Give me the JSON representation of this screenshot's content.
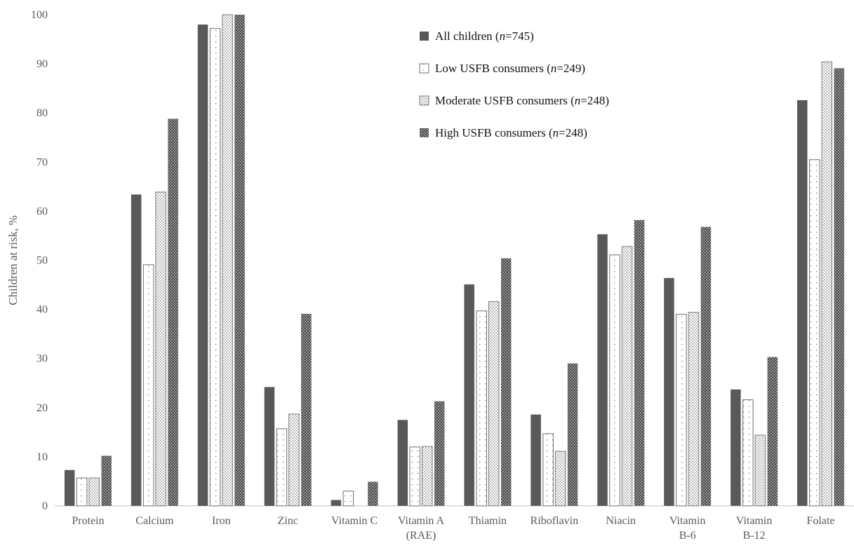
{
  "chart_data": {
    "type": "bar",
    "title": "",
    "xlabel": "",
    "ylabel": "Children at risk, %",
    "ylim": [
      0,
      100
    ],
    "yticks": [
      0,
      10,
      20,
      30,
      40,
      50,
      60,
      70,
      80,
      90,
      100
    ],
    "grid": false,
    "legend_position": "top-right",
    "categories": [
      [
        "Protein"
      ],
      [
        "Calcium"
      ],
      [
        "Iron"
      ],
      [
        "Zinc"
      ],
      [
        "Vitamin C"
      ],
      [
        "Vitamin A",
        "(RAE)"
      ],
      [
        "Thiamin"
      ],
      [
        "Riboflavin"
      ],
      [
        "Niacin"
      ],
      [
        "Vitamin",
        "B-6"
      ],
      [
        "Vitamin",
        "B-12"
      ],
      [
        "Folate"
      ]
    ],
    "series": [
      {
        "name": "All children (n=745)",
        "legend_parts": [
          "All children (",
          "n",
          "=745)"
        ],
        "pattern": "solid",
        "values": [
          7.3,
          63.4,
          98.0,
          24.2,
          1.2,
          17.5,
          45.1,
          18.6,
          55.3,
          46.4,
          23.7,
          82.6
        ]
      },
      {
        "name": "Low USFB consumers (n=249)",
        "legend_parts": [
          "Low USFB consumers (",
          "n",
          "=249)"
        ],
        "pattern": "sparse-dots",
        "values": [
          5.7,
          49.1,
          97.2,
          15.7,
          3.0,
          12.0,
          39.7,
          14.7,
          51.1,
          39.0,
          21.6,
          70.5
        ]
      },
      {
        "name": "Moderate USFB consumers (n=248)",
        "legend_parts": [
          "Moderate USFB consumers (",
          "n",
          "=248)"
        ],
        "pattern": "dense-dots",
        "values": [
          5.7,
          63.9,
          100.0,
          18.7,
          0,
          12.1,
          41.6,
          11.1,
          52.8,
          39.4,
          14.4,
          90.4
        ]
      },
      {
        "name": "High USFB consumers (n=248)",
        "legend_parts": [
          "High USFB consumers (",
          "n",
          "=248)"
        ],
        "pattern": "dark-dots",
        "values": [
          10.2,
          78.8,
          100.0,
          39.1,
          4.9,
          21.3,
          50.4,
          29.0,
          58.2,
          56.8,
          30.3,
          89.1
        ]
      }
    ]
  }
}
